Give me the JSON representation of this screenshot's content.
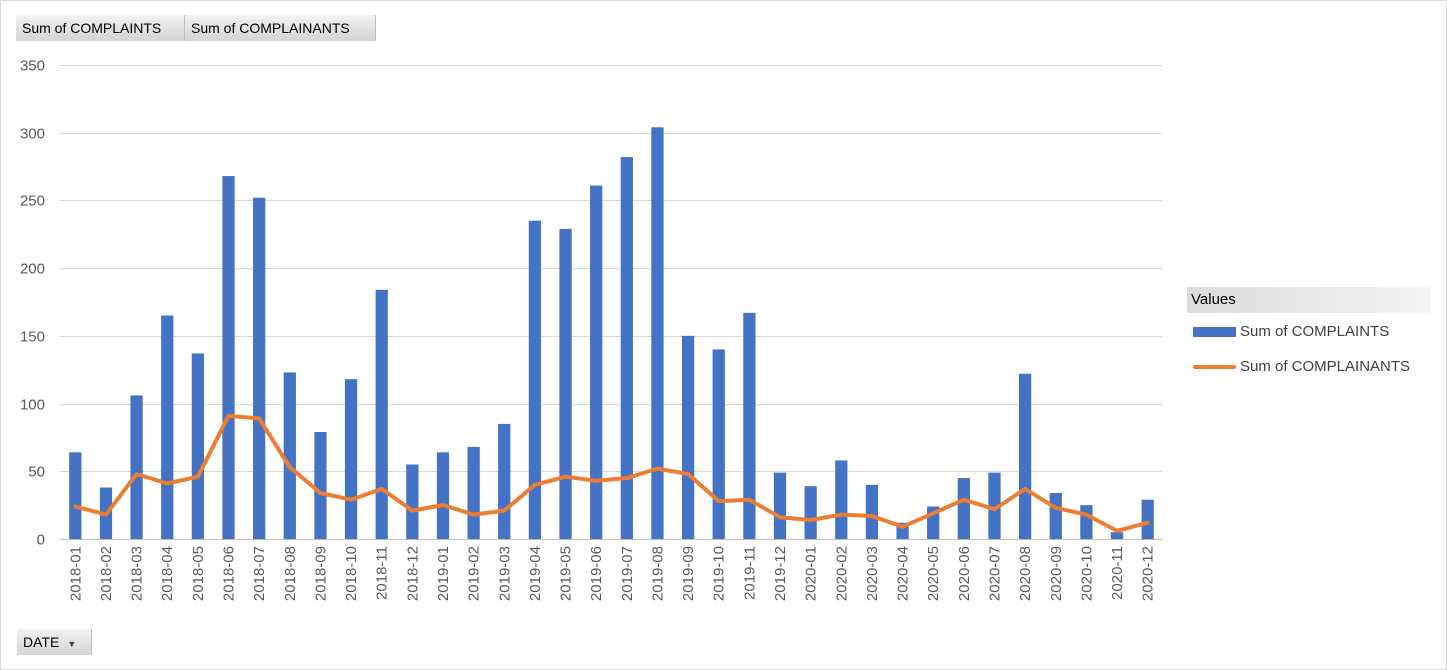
{
  "field_buttons": {
    "complaints": "Sum of COMPLAINTS",
    "complainants": "Sum of COMPLAINANTS",
    "date": "DATE",
    "date_dropdown_icon": "dropdown-triangle-icon"
  },
  "legend": {
    "header": "Values",
    "items": [
      "Sum of COMPLAINTS",
      "Sum of COMPLAINANTS"
    ]
  },
  "colors": {
    "bar": "#4472c4",
    "line": "#ed7d31",
    "grid": "#d9d9d9",
    "axis_text": "#595959"
  },
  "chart_data": {
    "type": "bar",
    "title": "",
    "xlabel": "",
    "ylabel": "",
    "ylim": [
      0,
      350
    ],
    "yticks": [
      0,
      50,
      100,
      150,
      200,
      250,
      300,
      350
    ],
    "grid": true,
    "legend_position": "right",
    "categories": [
      "2018-01",
      "2018-02",
      "2018-03",
      "2018-04",
      "2018-05",
      "2018-06",
      "2018-07",
      "2018-08",
      "2018-09",
      "2018-10",
      "2018-11",
      "2018-12",
      "2019-01",
      "2019-02",
      "2019-03",
      "2019-04",
      "2019-05",
      "2019-06",
      "2019-07",
      "2019-08",
      "2019-09",
      "2019-10",
      "2019-11",
      "2019-12",
      "2020-01",
      "2020-02",
      "2020-03",
      "2020-04",
      "2020-05",
      "2020-06",
      "2020-07",
      "2020-08",
      "2020-09",
      "2020-10",
      "2020-11",
      "2020-12"
    ],
    "series": [
      {
        "name": "Sum of COMPLAINTS",
        "type": "bar",
        "values": [
          64,
          38,
          106,
          165,
          137,
          268,
          252,
          123,
          79,
          118,
          184,
          55,
          64,
          68,
          85,
          235,
          229,
          261,
          282,
          304,
          150,
          140,
          167,
          49,
          39,
          58,
          40,
          12,
          24,
          45,
          49,
          122,
          34,
          25,
          5,
          29
        ]
      },
      {
        "name": "Sum of COMPLAINANTS",
        "type": "line",
        "values": [
          24,
          18,
          48,
          41,
          46,
          91,
          89,
          53,
          34,
          29,
          37,
          21,
          25,
          18,
          21,
          40,
          46,
          43,
          45,
          52,
          48,
          28,
          29,
          16,
          14,
          18,
          17,
          9,
          19,
          29,
          22,
          37,
          23,
          18,
          6,
          12
        ]
      }
    ]
  }
}
